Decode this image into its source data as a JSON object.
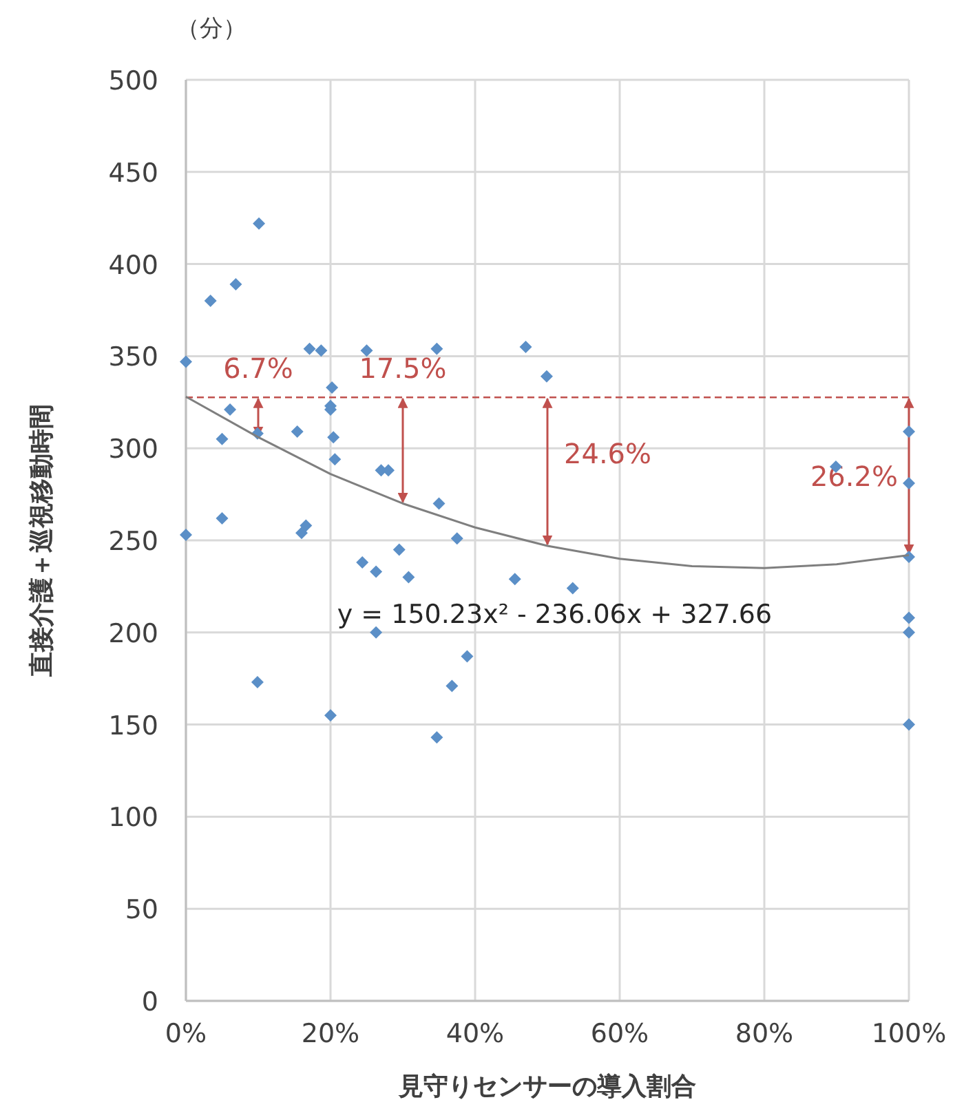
{
  "chart_data": {
    "type": "scatter",
    "xlabel": "見守りセンサーの導入割合",
    "ylabel": "直接介護＋巡視移動時間",
    "xlim": [
      0,
      1
    ],
    "ylim": [
      0,
      500
    ],
    "xticks": [
      {
        "value": 0,
        "label": "0%"
      },
      {
        "value": 0.2,
        "label": "20%"
      },
      {
        "value": 0.4,
        "label": "40%"
      },
      {
        "value": 0.6,
        "label": "60%"
      },
      {
        "value": 0.8,
        "label": "80%"
      },
      {
        "value": 1,
        "label": "100%"
      }
    ],
    "yticks": [
      0,
      50,
      100,
      150,
      200,
      250,
      300,
      350,
      400,
      450,
      500
    ],
    "grid": true,
    "marker": "diamond",
    "series": [
      {
        "color": "#5b8fc7",
        "x": [
          0,
          0.101,
          0.069,
          0.034,
          0.171,
          0.187,
          0.25,
          0.202,
          0.2,
          0.2,
          0.061,
          0.099,
          0.05,
          0.154,
          0.204,
          0.206,
          0.27,
          0.28,
          0.05,
          0,
          0.166,
          0.16,
          0.295,
          0.244,
          0.263,
          0.308,
          0.263,
          0.099,
          0.2,
          0.347,
          0.347,
          0.47,
          0.499,
          0.35,
          0.375,
          0.455,
          0.535,
          0.389,
          0.368,
          1,
          0.899,
          1,
          1,
          1,
          1,
          1
        ],
        "values": [
          347,
          422,
          389,
          380,
          354,
          353,
          353,
          333,
          323,
          321,
          321,
          308,
          305,
          309,
          306,
          294,
          288,
          288,
          262,
          253,
          258,
          254,
          245,
          238,
          233,
          230,
          200,
          173,
          155,
          143,
          354,
          355,
          339,
          270,
          251,
          229,
          224,
          187,
          171,
          309,
          290,
          281,
          241,
          208,
          200,
          150
        ]
      },
      {
        "type": "line",
        "color": "#7f7f7f",
        "marker": "none",
        "x": [
          0,
          0.1,
          0.2,
          0.3,
          0.4,
          0.5,
          0.6,
          0.7,
          0.8,
          0.9,
          1
        ],
        "values": [
          328,
          306,
          286,
          270,
          257,
          247,
          240,
          236,
          235,
          237,
          242
        ]
      }
    ],
    "ref_lines": [
      {
        "axis": "y",
        "value": 327.66,
        "color": "#c0504d",
        "line_style": "dashed"
      }
    ],
    "annotations": [
      "y = 150.23x² - 236.06x + 327.66",
      "（分）",
      {
        "text": "6.7%",
        "x": 0.1,
        "y": 306
      },
      {
        "text": "17.5%",
        "x": 0.3,
        "y": 270
      },
      {
        "text": "24.6%",
        "x": 0.5,
        "y": 247
      },
      {
        "text": "26.2%",
        "x": 1,
        "y": 242
      }
    ]
  }
}
